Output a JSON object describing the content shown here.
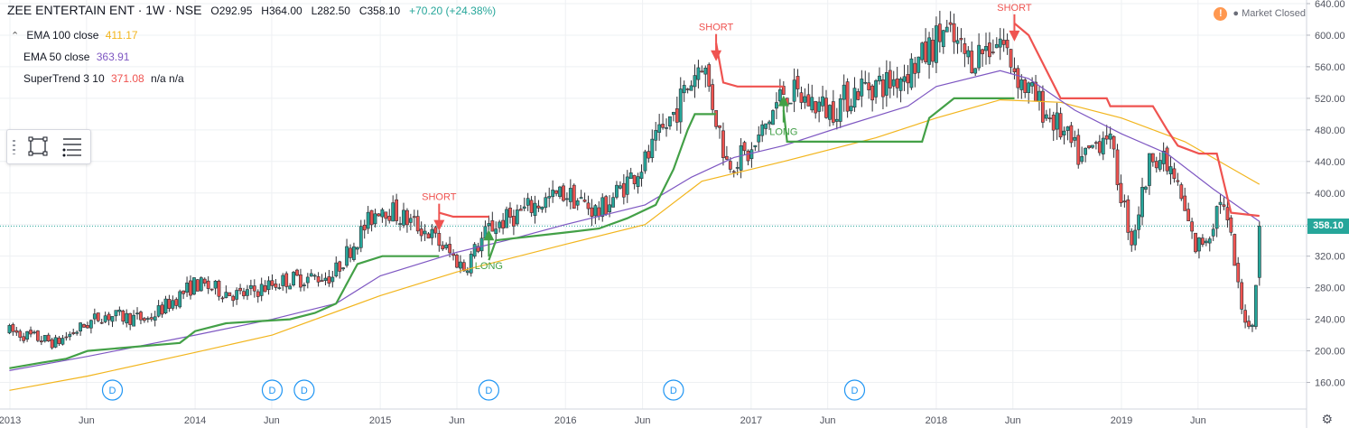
{
  "header": {
    "symbol": "ZEE ENTERTAIN ENT · 1W · NSE",
    "open": "O292.95",
    "high": "H364.00",
    "low": "L282.50",
    "close": "C358.10",
    "change": "+70.20 (+24.38%)"
  },
  "legend": [
    {
      "name": "EMA 100 close",
      "value": "411.17",
      "color": "#f2b51d"
    },
    {
      "name": "EMA 50 close",
      "value": "363.91",
      "color": "#7e57c2"
    },
    {
      "name": "SuperTrend 3 10",
      "value": "371.08",
      "extra": "n/a n/a",
      "color": "#ef5350"
    }
  ],
  "status": {
    "icon": "!",
    "text": "● Market Closed"
  },
  "last_price": "358.10",
  "colors": {
    "up": "#26a69a",
    "down": "#ef5350",
    "ema100": "#f2b51d",
    "ema50": "#7e57c2",
    "st_up": "#43a047",
    "st_down": "#ef5350",
    "grid": "#eef0f3",
    "axis": "#50535e"
  },
  "chart_data": {
    "type": "candlestick",
    "interval": "1W",
    "y_axis": {
      "min": 140,
      "max": 640,
      "ticks": [
        "640.00",
        "600.00",
        "560.00",
        "520.00",
        "480.00",
        "440.00",
        "400.00",
        "360.00",
        "320.00",
        "280.00",
        "240.00",
        "200.00",
        "160.00"
      ],
      "side": "right"
    },
    "x_axis_labels": [
      "2013",
      "Jun",
      "2014",
      "Jun",
      "2015",
      "Jun",
      "2016",
      "Jun",
      "2017",
      "Jun",
      "2018",
      "Jun",
      "2019",
      "Jun"
    ],
    "grid": true,
    "close_path": [
      {
        "date": "2012-12-31",
        "close": 225
      },
      {
        "date": "2013-04-01",
        "close": 210
      },
      {
        "date": "2013-07-01",
        "close": 245
      },
      {
        "date": "2013-09-30",
        "close": 240
      },
      {
        "date": "2014-01-01",
        "close": 285
      },
      {
        "date": "2014-03-31",
        "close": 270
      },
      {
        "date": "2014-06-30",
        "close": 290
      },
      {
        "date": "2014-09-29",
        "close": 295
      },
      {
        "date": "2014-11-03",
        "close": 330
      },
      {
        "date": "2015-01-01",
        "close": 385
      },
      {
        "date": "2015-04-06",
        "close": 350
      },
      {
        "date": "2015-06-15",
        "close": 305
      },
      {
        "date": "2015-08-03",
        "close": 355
      },
      {
        "date": "2015-11-02",
        "close": 385
      },
      {
        "date": "2016-01-01",
        "close": 400
      },
      {
        "date": "2016-03-07",
        "close": 375
      },
      {
        "date": "2016-06-06",
        "close": 440
      },
      {
        "date": "2016-08-01",
        "close": 500
      },
      {
        "date": "2016-09-26",
        "close": 570
      },
      {
        "date": "2016-11-14",
        "close": 440
      },
      {
        "date": "2017-01-02",
        "close": 450
      },
      {
        "date": "2017-03-06",
        "close": 530
      },
      {
        "date": "2017-06-05",
        "close": 505
      },
      {
        "date": "2017-08-07",
        "close": 535
      },
      {
        "date": "2017-10-02",
        "close": 540
      },
      {
        "date": "2017-12-04",
        "close": 570
      },
      {
        "date": "2018-01-15",
        "close": 605
      },
      {
        "date": "2018-03-05",
        "close": 570
      },
      {
        "date": "2018-05-07",
        "close": 595
      },
      {
        "date": "2018-06-18",
        "close": 540
      },
      {
        "date": "2018-09-03",
        "close": 480
      },
      {
        "date": "2018-10-15",
        "close": 440
      },
      {
        "date": "2018-12-03",
        "close": 480
      },
      {
        "date": "2019-01-21",
        "close": 340
      },
      {
        "date": "2019-03-04",
        "close": 455
      },
      {
        "date": "2019-04-15",
        "close": 420
      },
      {
        "date": "2019-05-27",
        "close": 330
      },
      {
        "date": "2019-06-24",
        "close": 350
      },
      {
        "date": "2019-07-15",
        "close": 395
      },
      {
        "date": "2019-08-05",
        "close": 340
      },
      {
        "date": "2019-08-26",
        "close": 250
      },
      {
        "date": "2019-09-16",
        "close": 230
      },
      {
        "date": "2019-09-30",
        "close": 358
      }
    ],
    "last_bar": {
      "open": 292.95,
      "high": 364.0,
      "low": 282.5,
      "close": 358.1
    },
    "ema50_path": [
      {
        "date": "2012-12-31",
        "value": 175
      },
      {
        "date": "2013-06-03",
        "value": 193
      },
      {
        "date": "2014-01-01",
        "value": 220
      },
      {
        "date": "2014-06-02",
        "value": 240
      },
      {
        "date": "2014-10-06",
        "value": 260
      },
      {
        "date": "2015-01-01",
        "value": 295
      },
      {
        "date": "2015-06-01",
        "value": 325
      },
      {
        "date": "2015-09-07",
        "value": 340
      },
      {
        "date": "2016-01-01",
        "value": 360
      },
      {
        "date": "2016-06-06",
        "value": 385
      },
      {
        "date": "2016-09-05",
        "value": 420
      },
      {
        "date": "2016-11-28",
        "value": 445
      },
      {
        "date": "2017-03-06",
        "value": 460
      },
      {
        "date": "2017-07-03",
        "value": 485
      },
      {
        "date": "2017-11-06",
        "value": 510
      },
      {
        "date": "2018-01-01",
        "value": 535
      },
      {
        "date": "2018-05-07",
        "value": 555
      },
      {
        "date": "2018-07-02",
        "value": 545
      },
      {
        "date": "2018-10-01",
        "value": 505
      },
      {
        "date": "2019-01-01",
        "value": 475
      },
      {
        "date": "2019-04-01",
        "value": 450
      },
      {
        "date": "2019-07-01",
        "value": 405
      },
      {
        "date": "2019-09-30",
        "value": 364
      }
    ],
    "ema100_path": [
      {
        "date": "2012-12-31",
        "value": 150
      },
      {
        "date": "2013-06-03",
        "value": 168
      },
      {
        "date": "2014-01-01",
        "value": 198
      },
      {
        "date": "2014-06-02",
        "value": 220
      },
      {
        "date": "2015-01-01",
        "value": 270
      },
      {
        "date": "2015-06-01",
        "value": 300
      },
      {
        "date": "2016-01-01",
        "value": 335
      },
      {
        "date": "2016-06-06",
        "value": 360
      },
      {
        "date": "2016-09-26",
        "value": 415
      },
      {
        "date": "2017-03-06",
        "value": 440
      },
      {
        "date": "2017-09-04",
        "value": 470
      },
      {
        "date": "2018-01-01",
        "value": 495
      },
      {
        "date": "2018-05-07",
        "value": 518
      },
      {
        "date": "2018-09-03",
        "value": 515
      },
      {
        "date": "2019-01-01",
        "value": 495
      },
      {
        "date": "2019-05-06",
        "value": 465
      },
      {
        "date": "2019-09-30",
        "value": 411
      }
    ],
    "supertrend_up": [
      [
        {
          "date": "2012-12-31",
          "value": 178
        },
        {
          "date": "2013-03-04",
          "value": 185
        },
        {
          "date": "2013-04-22",
          "value": 190
        },
        {
          "date": "2013-06-03",
          "value": 200
        },
        {
          "date": "2013-12-02",
          "value": 210
        },
        {
          "date": "2014-01-01",
          "value": 225
        },
        {
          "date": "2014-03-03",
          "value": 235
        },
        {
          "date": "2014-07-07",
          "value": 240
        },
        {
          "date": "2014-08-25",
          "value": 248
        },
        {
          "date": "2014-10-06",
          "value": 260
        },
        {
          "date": "2014-11-17",
          "value": 310
        },
        {
          "date": "2015-01-05",
          "value": 320
        },
        {
          "date": "2015-04-27",
          "value": 320
        }
      ],
      [
        {
          "date": "2015-08-03",
          "value": 315
        },
        {
          "date": "2015-08-17",
          "value": 340
        },
        {
          "date": "2016-01-01",
          "value": 350
        },
        {
          "date": "2016-03-07",
          "value": 355
        },
        {
          "date": "2016-05-02",
          "value": 368
        },
        {
          "date": "2016-06-27",
          "value": 385
        },
        {
          "date": "2016-08-01",
          "value": 430
        },
        {
          "date": "2016-08-29",
          "value": 480
        },
        {
          "date": "2016-09-12",
          "value": 500
        },
        {
          "date": "2016-10-24",
          "value": 500
        }
      ],
      [
        {
          "date": "2017-03-06",
          "value": 505
        },
        {
          "date": "2017-03-13",
          "value": 465
        },
        {
          "date": "2017-12-04",
          "value": 465
        },
        {
          "date": "2017-12-18",
          "value": 495
        },
        {
          "date": "2018-02-05",
          "value": 520
        },
        {
          "date": "2018-06-04",
          "value": 520
        }
      ]
    ],
    "supertrend_down": [
      [
        {
          "date": "2015-04-27",
          "value": 375
        },
        {
          "date": "2015-05-25",
          "value": 370
        },
        {
          "date": "2015-08-03",
          "value": 370
        }
      ],
      [
        {
          "date": "2016-10-24",
          "value": 590
        },
        {
          "date": "2016-11-07",
          "value": 540
        },
        {
          "date": "2016-12-05",
          "value": 535
        },
        {
          "date": "2017-03-06",
          "value": 535
        }
      ],
      [
        {
          "date": "2018-06-04",
          "value": 615
        },
        {
          "date": "2018-07-02",
          "value": 600
        },
        {
          "date": "2018-09-03",
          "value": 520
        },
        {
          "date": "2018-12-03",
          "value": 520
        },
        {
          "date": "2018-12-10",
          "value": 510
        },
        {
          "date": "2019-03-04",
          "value": 510
        },
        {
          "date": "2019-04-01",
          "value": 480
        },
        {
          "date": "2019-04-22",
          "value": 460
        },
        {
          "date": "2019-06-03",
          "value": 450
        },
        {
          "date": "2019-07-08",
          "value": 450
        },
        {
          "date": "2019-08-05",
          "value": 375
        },
        {
          "date": "2019-09-30",
          "value": 371
        }
      ]
    ],
    "signals": [
      {
        "label": "SHORT",
        "date": "2015-04-27",
        "value": 375,
        "dir": "down"
      },
      {
        "label": "LONG",
        "date": "2015-08-03",
        "value": 340,
        "dir": "up"
      },
      {
        "label": "SHORT",
        "date": "2016-10-24",
        "value": 590,
        "dir": "down"
      },
      {
        "label": "LONG",
        "date": "2017-03-06",
        "value": 510,
        "dir": "up"
      },
      {
        "label": "SHORT",
        "date": "2018-06-04",
        "value": 615,
        "dir": "down"
      }
    ],
    "dividend_markers": {
      "label": "D",
      "dates": [
        "2013-07-22",
        "2014-06-02",
        "2014-08-04",
        "2015-08-03",
        "2016-08-01",
        "2017-07-24"
      ]
    }
  }
}
